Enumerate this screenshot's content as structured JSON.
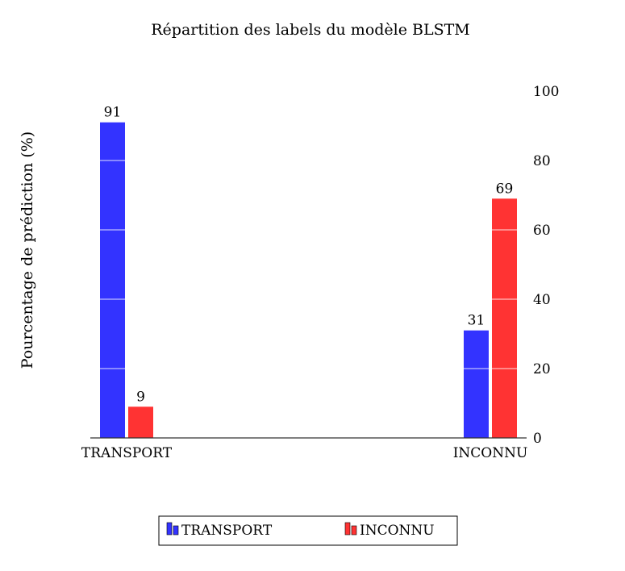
{
  "chart_data": {
    "type": "bar",
    "title": "Répartition des labels du modèle BLSTM",
    "ylabel": "Pourcentage de prédiction (%)",
    "xlabel": "",
    "categories": [
      "TRANSPORT",
      "INCONNU"
    ],
    "series": [
      {
        "name": "TRANSPORT",
        "color": "#3333ff",
        "values": [
          91,
          31
        ]
      },
      {
        "name": "INCONNU",
        "color": "#ff3333",
        "values": [
          9,
          69
        ]
      }
    ],
    "ylim": [
      0,
      100
    ],
    "yticks": [
      0,
      20,
      40,
      60,
      80,
      100
    ],
    "y_axis_side": "right",
    "grid": false,
    "legend_position": "bottom-center",
    "data_labels": true
  }
}
